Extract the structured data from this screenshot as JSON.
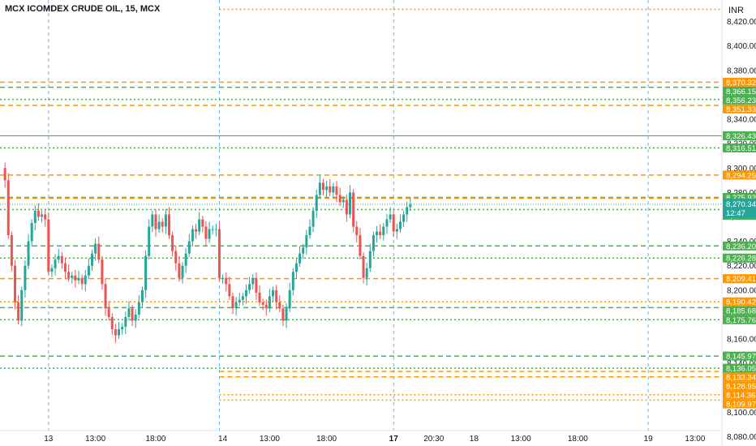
{
  "header": {
    "title": "MCX ICOMDEX CRUDE OIL, 15, MCX"
  },
  "currency_label": "INR",
  "colors": {
    "up": "#26a69a",
    "down": "#ef5350",
    "orange": "#ff9800",
    "green": "#4caf50",
    "blue": "#64b5f6",
    "current": "#26a69a"
  },
  "chart_data": {
    "type": "candlestick",
    "title": "MCX ICOMDEX CRUDE OIL, 15, MCX",
    "ylim": [
      8075,
      8435
    ],
    "y_ticks": [
      8080,
      8100,
      8120,
      8140,
      8160,
      8180,
      8200,
      8220,
      8240,
      8260,
      8280,
      8300,
      8320,
      8340,
      8360,
      8380,
      8400,
      8420
    ],
    "x_labels": [
      {
        "label": "13",
        "bold": false,
        "slot": 14
      },
      {
        "label": "13:00",
        "bold": false,
        "slot": 28
      },
      {
        "label": "18:00",
        "bold": false,
        "slot": 46
      },
      {
        "label": "14",
        "bold": false,
        "slot": 66
      },
      {
        "label": "13:00",
        "bold": false,
        "slot": 80
      },
      {
        "label": "18:00",
        "bold": false,
        "slot": 97
      },
      {
        "label": "17",
        "bold": true,
        "slot": 117
      },
      {
        "label": "20:30",
        "bold": false,
        "slot": 129
      },
      {
        "label": "18",
        "bold": false,
        "slot": 141
      },
      {
        "label": "13:00",
        "bold": false,
        "slot": 155
      },
      {
        "label": "18:00",
        "bold": false,
        "slot": 172
      },
      {
        "label": "19",
        "bold": false,
        "slot": 193
      },
      {
        "label": "13:00",
        "bold": false,
        "slot": 207
      }
    ],
    "session_breaks": [
      14,
      65,
      117,
      193
    ],
    "close_series": [
      8300,
      8290,
      8245,
      8220,
      8190,
      8175,
      8200,
      8220,
      8240,
      8255,
      8265,
      8260,
      8262,
      8258,
      8215,
      8218,
      8225,
      8228,
      8222,
      8215,
      8210,
      8212,
      8208,
      8210,
      8205,
      8212,
      8220,
      8230,
      8238,
      8225,
      8205,
      8185,
      8178,
      8168,
      8163,
      8168,
      8170,
      8178,
      8185,
      8175,
      8180,
      8190,
      8200,
      8228,
      8252,
      8262,
      8250,
      8256,
      8252,
      8262,
      8245,
      8232,
      8222,
      8210,
      8220,
      8230,
      8240,
      8250,
      8248,
      8258,
      8252,
      8242,
      8250,
      8250,
      8250,
      8210,
      8210,
      8205,
      8195,
      8185,
      8190,
      8192,
      8195,
      8200,
      8205,
      8210,
      8198,
      8190,
      8188,
      8185,
      8195,
      8200,
      8190,
      8185,
      8175,
      8185,
      8200,
      8215,
      8222,
      8230,
      8235,
      8245,
      8252,
      8265,
      8278,
      8288,
      8282,
      8285,
      8280,
      8285,
      8278,
      8272,
      8274,
      8262,
      8280,
      8252,
      8245,
      8228,
      8210,
      8218,
      8232,
      8245,
      8248,
      8245,
      8252,
      8258,
      8262,
      8248,
      8250,
      8256,
      8262,
      8268,
      8270
    ],
    "current_price": {
      "value": 8270.34,
      "value_label": "8,270.34",
      "timer": "12:47"
    },
    "levels": [
      {
        "value": 8430.0,
        "label": "",
        "color": "orange",
        "style": "dotted",
        "tag": false
      },
      {
        "value": 8370.32,
        "label": "8,370.32",
        "color": "orange",
        "style": "dashed",
        "tag": true
      },
      {
        "value": 8366.15,
        "label": "8,366.15",
        "color": "green",
        "style": "dashed",
        "tag": true
      },
      {
        "value": 8356.23,
        "label": "8,356.23",
        "color": "green",
        "style": "dotted",
        "tag": true
      },
      {
        "value": 8351.33,
        "label": "8,351.33",
        "color": "orange",
        "style": "dashed",
        "tag": true
      },
      {
        "value": 8326.43,
        "label": "8,326.43",
        "color": "green",
        "style": "solid",
        "tag": true
      },
      {
        "value": 8316.51,
        "label": "8,316.51",
        "color": "green",
        "style": "dotted",
        "tag": true
      },
      {
        "value": 8294.25,
        "label": "8,294.25",
        "color": "orange",
        "style": "dashed",
        "tag": true
      },
      {
        "value": 8275.92,
        "label": "8,275.92",
        "color": "green",
        "style": "dashed",
        "tag": true
      },
      {
        "value": 8275.27,
        "label": "8,275.27",
        "color": "orange",
        "style": "dashed",
        "tag": true
      },
      {
        "value": 8266.0,
        "label": "8,266.00",
        "color": "green",
        "style": "dotted",
        "tag": true
      },
      {
        "value": 8236.2,
        "label": "8,236.20",
        "color": "green",
        "style": "dashed",
        "tag": true
      },
      {
        "value": 8226.28,
        "label": "8,226.28",
        "color": "green",
        "style": "dotted",
        "tag": true
      },
      {
        "value": 8209.41,
        "label": "8,209.41",
        "color": "orange",
        "style": "dashed",
        "tag": true
      },
      {
        "value": 8190.42,
        "label": "8,190.42",
        "color": "orange",
        "style": "dotted",
        "tag": true
      },
      {
        "value": 8185.68,
        "label": "8,185.68",
        "color": "green",
        "style": "dashed",
        "tag": true
      },
      {
        "value": 8175.76,
        "label": "8,175.76",
        "color": "green",
        "style": "dotted",
        "tag": true
      },
      {
        "value": 8145.97,
        "label": "8,145.97",
        "color": "green",
        "style": "dashed",
        "tag": true
      },
      {
        "value": 8136.05,
        "label": "8,136.05",
        "color": "green",
        "style": "dotted",
        "tag": true
      },
      {
        "value": 8133.34,
        "label": "8,133.34",
        "color": "orange",
        "style": "dashed",
        "tag": true
      },
      {
        "value": 8128.95,
        "label": "8,128.95",
        "color": "orange",
        "style": "dashed",
        "tag": true
      },
      {
        "value": 8114.36,
        "label": "8,114.36",
        "color": "orange",
        "style": "dotted",
        "tag": true
      },
      {
        "value": 8109.97,
        "label": "8,109.97",
        "color": "orange",
        "style": "dotted",
        "tag": true
      }
    ]
  }
}
